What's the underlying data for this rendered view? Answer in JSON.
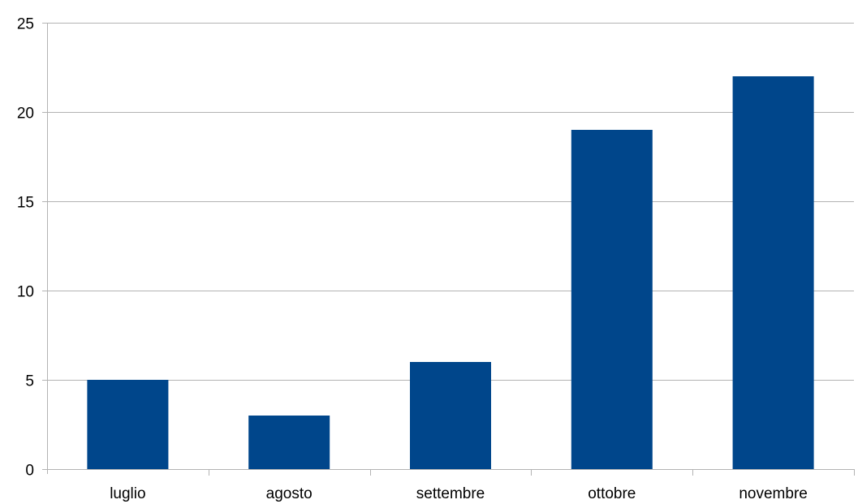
{
  "chart_data": {
    "type": "bar",
    "categories": [
      "luglio",
      "agosto",
      "settembre",
      "ottobre",
      "novembre"
    ],
    "values": [
      5,
      3,
      6,
      19,
      22
    ],
    "ylim": [
      0,
      25
    ],
    "yticks": [
      "0",
      "5",
      "10",
      "15",
      "20",
      "25"
    ],
    "grid": true,
    "legend": "none",
    "bar_color": "#00468B",
    "grid_color": "#B3B3B3",
    "axis_color": "#B3B3B3"
  }
}
